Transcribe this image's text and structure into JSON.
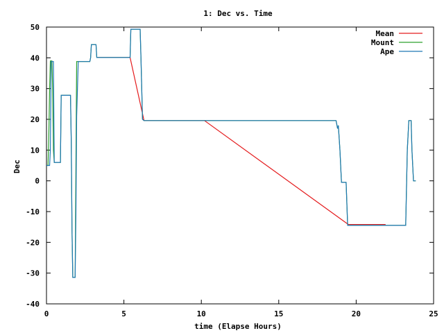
{
  "chart_data": {
    "type": "line",
    "title": "1: Dec vs. Time",
    "xlabel": "time (Elapse Hours)",
    "ylabel": "Dec",
    "xlim": [
      0,
      25
    ],
    "ylim": [
      -40,
      50
    ],
    "xticks": [
      "0",
      "5",
      "10",
      "15",
      "20",
      "25"
    ],
    "yticks": [
      "50",
      "40",
      "30",
      "20",
      "10",
      "0",
      "-10",
      "-20",
      "-30",
      "-40"
    ],
    "grid": false,
    "legend": "top-right",
    "series": [
      {
        "name": "Mean",
        "color": "#e41a1c",
        "points": [
          [
            3.3,
            40.1
          ],
          [
            5.4,
            40.1
          ],
          [
            6.3,
            19.6
          ],
          [
            10.2,
            19.6
          ],
          [
            19.5,
            -14.2
          ],
          [
            21.9,
            -14.2
          ]
        ]
      },
      {
        "name": "Mount",
        "color": "#2ca02c",
        "points": [
          [
            0,
            5
          ],
          [
            0.1,
            5
          ],
          [
            0.15,
            14
          ],
          [
            0.2,
            30
          ],
          [
            0.25,
            39
          ],
          [
            0.35,
            39
          ],
          [
            0.4,
            30
          ],
          [
            0.45,
            10
          ],
          [
            0.5,
            6
          ],
          [
            0.9,
            6
          ],
          [
            0.95,
            27.8
          ],
          [
            1.55,
            27.8
          ],
          [
            1.6,
            13
          ],
          [
            1.65,
            -16
          ],
          [
            1.7,
            -31.4
          ],
          [
            1.85,
            -31.4
          ],
          [
            1.95,
            38.8
          ],
          [
            2.8,
            38.8
          ],
          [
            2.85,
            40
          ],
          [
            2.9,
            44.3
          ],
          [
            3.2,
            44.3
          ],
          [
            3.25,
            40.1
          ],
          [
            5.4,
            40.1
          ],
          [
            5.45,
            49.3
          ],
          [
            6.05,
            49.3
          ],
          [
            6.1,
            40
          ],
          [
            6.2,
            20
          ],
          [
            6.3,
            19.6
          ],
          [
            18.7,
            19.6
          ],
          [
            18.8,
            17
          ],
          [
            18.85,
            18
          ],
          [
            18.95,
            10
          ],
          [
            19.05,
            -0.5
          ],
          [
            19.35,
            -0.5
          ],
          [
            19.45,
            -14.5
          ],
          [
            23.2,
            -14.5
          ],
          [
            23.3,
            10
          ],
          [
            23.4,
            19.6
          ],
          [
            23.55,
            19.6
          ],
          [
            23.6,
            10
          ],
          [
            23.7,
            0
          ],
          [
            23.85,
            0
          ]
        ]
      },
      {
        "name": "Ape",
        "color": "#1f77b4",
        "points": [
          [
            0,
            5
          ],
          [
            0.2,
            5
          ],
          [
            0.25,
            10
          ],
          [
            0.3,
            38.8
          ],
          [
            0.45,
            38.8
          ],
          [
            0.5,
            6
          ],
          [
            0.9,
            6
          ],
          [
            0.95,
            27.8
          ],
          [
            1.55,
            27.8
          ],
          [
            1.6,
            13
          ],
          [
            1.65,
            -16
          ],
          [
            1.7,
            -31.4
          ],
          [
            1.85,
            -31.4
          ],
          [
            1.9,
            -12
          ],
          [
            1.95,
            21
          ],
          [
            2.05,
            38.8
          ],
          [
            2.8,
            38.8
          ],
          [
            2.85,
            40
          ],
          [
            2.9,
            44.3
          ],
          [
            3.2,
            44.3
          ],
          [
            3.25,
            40.1
          ],
          [
            5.4,
            40.1
          ],
          [
            5.45,
            49.3
          ],
          [
            6.05,
            49.3
          ],
          [
            6.1,
            40
          ],
          [
            6.2,
            20
          ],
          [
            6.3,
            19.6
          ],
          [
            18.7,
            19.6
          ],
          [
            18.8,
            17
          ],
          [
            18.85,
            18
          ],
          [
            18.95,
            10
          ],
          [
            19.05,
            -0.5
          ],
          [
            19.35,
            -0.5
          ],
          [
            19.45,
            -14.5
          ],
          [
            23.2,
            -14.5
          ],
          [
            23.3,
            10
          ],
          [
            23.4,
            19.6
          ],
          [
            23.55,
            19.6
          ],
          [
            23.6,
            10
          ],
          [
            23.7,
            0
          ],
          [
            23.85,
            0
          ]
        ]
      }
    ]
  }
}
